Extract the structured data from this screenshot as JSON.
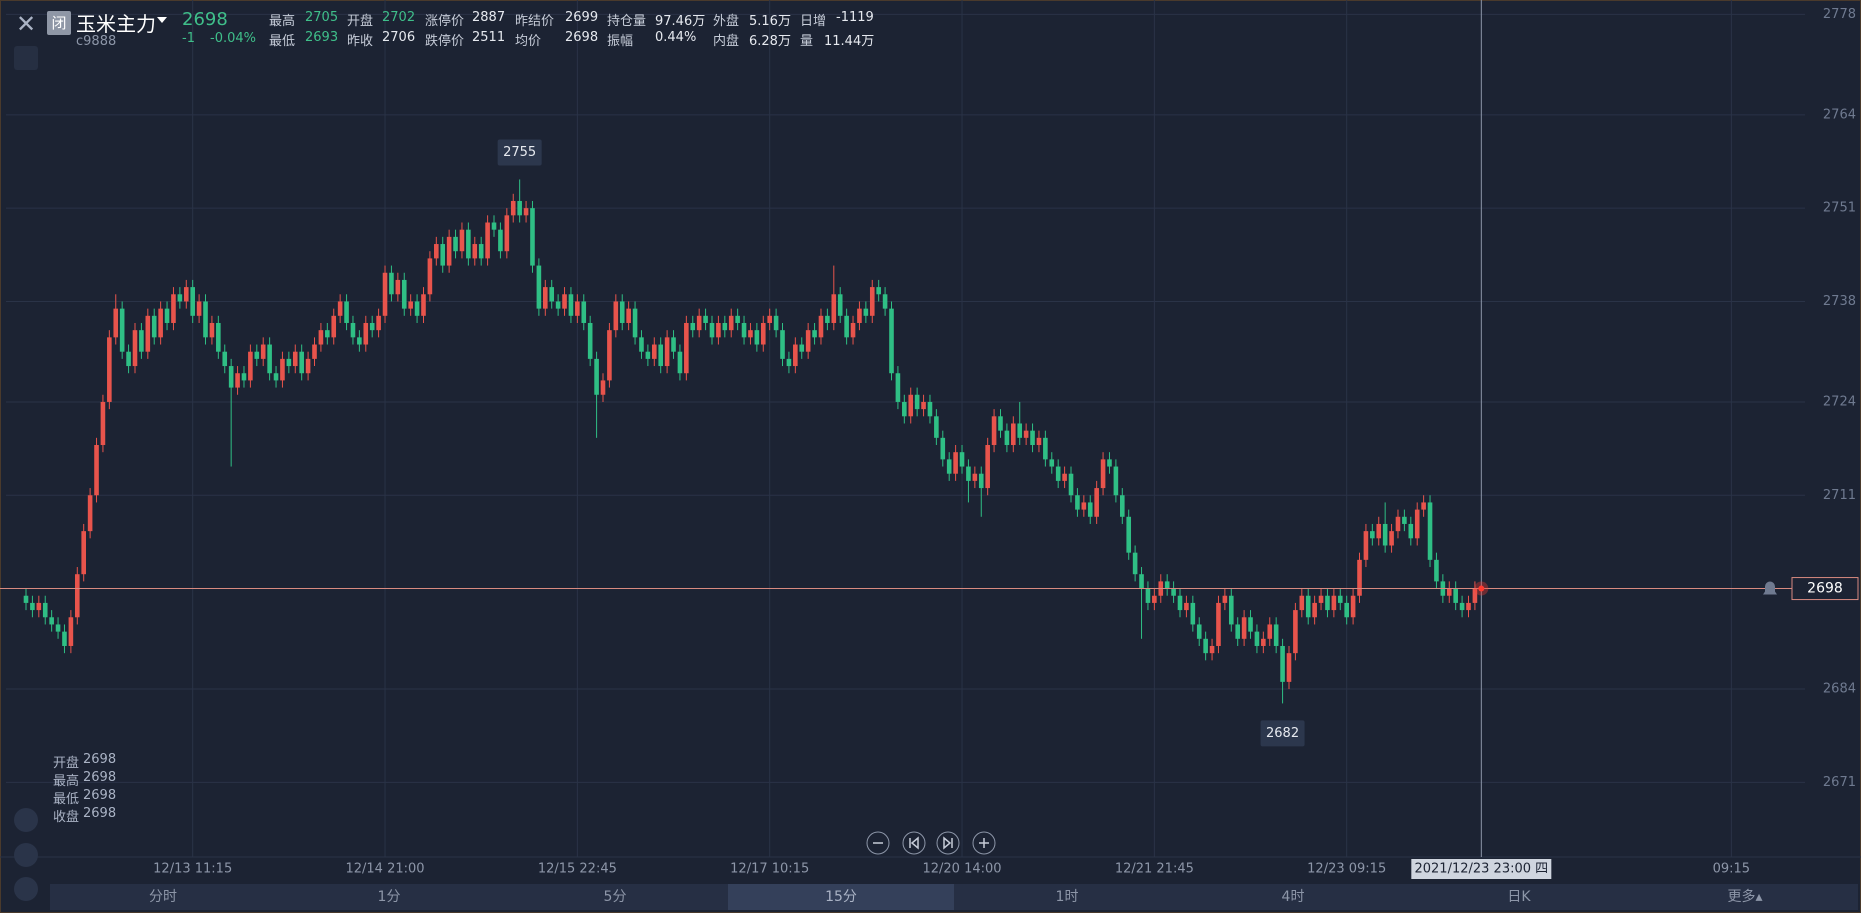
{
  "header": {
    "close_icon_label": "闭",
    "name": "玉米主力",
    "code": "c9888",
    "price": "2698",
    "change": "-1",
    "change_pct": "-0.04%"
  },
  "stats": [
    [
      {
        "label": "最高",
        "value": "2705",
        "color": "#3fbf8a"
      },
      {
        "label": "开盘",
        "value": "2702",
        "color": "#3fbf8a"
      },
      {
        "label": "涨停价",
        "value": "2887"
      },
      {
        "label": "昨结价",
        "value": "2699"
      },
      {
        "label": "持仓量",
        "value": "97.46万"
      },
      {
        "label": "外盘",
        "value": "5.16万"
      },
      {
        "label": "日增",
        "value": "-1119"
      }
    ],
    [
      {
        "label": "最低",
        "value": "2693",
        "color": "#3fbf8a"
      },
      {
        "label": "昨收",
        "value": "2706"
      },
      {
        "label": "跌停价",
        "value": "2511"
      },
      {
        "label": "均价",
        "value": "2698"
      },
      {
        "label": "振幅",
        "value": "0.44%"
      },
      {
        "label": "内盘",
        "value": "6.28万"
      },
      {
        "label": "量",
        "value": "11.44万"
      }
    ]
  ],
  "chart_data": {
    "type": "candlestick",
    "ohlc": [
      [
        2697,
        2698,
        2695,
        2696
      ],
      [
        2696,
        2697,
        2694,
        2695
      ],
      [
        2695,
        2697,
        2694,
        2696
      ],
      [
        2696,
        2697,
        2693,
        2694
      ],
      [
        2694,
        2695,
        2692,
        2693
      ],
      [
        2693,
        2694,
        2691,
        2692
      ],
      [
        2692,
        2693,
        2689,
        2690
      ],
      [
        2690,
        2695,
        2689,
        2694
      ],
      [
        2694,
        2701,
        2693,
        2700
      ],
      [
        2700,
        2707,
        2699,
        2706
      ],
      [
        2706,
        2712,
        2705,
        2711
      ],
      [
        2711,
        2719,
        2710,
        2718
      ],
      [
        2718,
        2725,
        2717,
        2724
      ],
      [
        2724,
        2734,
        2723,
        2733
      ],
      [
        2733,
        2739,
        2732,
        2737
      ],
      [
        2737,
        2738,
        2730,
        2731
      ],
      [
        2731,
        2732,
        2728,
        2729
      ],
      [
        2729,
        2735,
        2728,
        2734
      ],
      [
        2734,
        2735,
        2730,
        2731
      ],
      [
        2731,
        2737,
        2730,
        2736
      ],
      [
        2736,
        2737,
        2732,
        2733
      ],
      [
        2733,
        2738,
        2732,
        2737
      ],
      [
        2737,
        2738,
        2734,
        2735
      ],
      [
        2735,
        2740,
        2734,
        2739
      ],
      [
        2739,
        2740,
        2737,
        2738
      ],
      [
        2738,
        2741,
        2737,
        2740
      ],
      [
        2740,
        2741,
        2735,
        2736
      ],
      [
        2736,
        2739,
        2735,
        2738
      ],
      [
        2738,
        2739,
        2732,
        2733
      ],
      [
        2733,
        2736,
        2732,
        2735
      ],
      [
        2735,
        2736,
        2730,
        2731
      ],
      [
        2731,
        2732,
        2728,
        2729
      ],
      [
        2729,
        2730,
        2715,
        2726
      ],
      [
        2726,
        2729,
        2725,
        2728
      ],
      [
        2728,
        2729,
        2726,
        2727
      ],
      [
        2727,
        2732,
        2726,
        2731
      ],
      [
        2731,
        2732,
        2729,
        2730
      ],
      [
        2730,
        2733,
        2729,
        2732
      ],
      [
        2732,
        2733,
        2727,
        2728
      ],
      [
        2728,
        2729,
        2726,
        2727
      ],
      [
        2727,
        2731,
        2726,
        2730
      ],
      [
        2730,
        2731,
        2728,
        2729
      ],
      [
        2729,
        2732,
        2728,
        2731
      ],
      [
        2731,
        2732,
        2727,
        2728
      ],
      [
        2728,
        2731,
        2727,
        2730
      ],
      [
        2730,
        2733,
        2729,
        2732
      ],
      [
        2732,
        2735,
        2731,
        2734
      ],
      [
        2734,
        2735,
        2732,
        2733
      ],
      [
        2733,
        2737,
        2732,
        2736
      ],
      [
        2736,
        2739,
        2735,
        2738
      ],
      [
        2738,
        2739,
        2734,
        2735
      ],
      [
        2735,
        2736,
        2732,
        2733
      ],
      [
        2733,
        2734,
        2731,
        2732
      ],
      [
        2732,
        2736,
        2731,
        2735
      ],
      [
        2735,
        2736,
        2733,
        2734
      ],
      [
        2734,
        2737,
        2733,
        2736
      ],
      [
        2736,
        2743,
        2735,
        2742
      ],
      [
        2742,
        2743,
        2738,
        2739
      ],
      [
        2739,
        2742,
        2738,
        2741
      ],
      [
        2741,
        2742,
        2736,
        2737
      ],
      [
        2737,
        2739,
        2736,
        2738
      ],
      [
        2738,
        2739,
        2735,
        2736
      ],
      [
        2736,
        2740,
        2735,
        2739
      ],
      [
        2739,
        2745,
        2738,
        2744
      ],
      [
        2744,
        2747,
        2743,
        2746
      ],
      [
        2746,
        2747,
        2742,
        2743
      ],
      [
        2743,
        2748,
        2742,
        2747
      ],
      [
        2747,
        2748,
        2744,
        2745
      ],
      [
        2745,
        2749,
        2744,
        2748
      ],
      [
        2748,
        2749,
        2743,
        2744
      ],
      [
        2744,
        2747,
        2743,
        2746
      ],
      [
        2746,
        2747,
        2743,
        2744
      ],
      [
        2744,
        2750,
        2743,
        2749
      ],
      [
        2749,
        2750,
        2747,
        2748
      ],
      [
        2748,
        2749,
        2744,
        2745
      ],
      [
        2745,
        2751,
        2744,
        2750
      ],
      [
        2750,
        2753,
        2749,
        2752
      ],
      [
        2752,
        2755,
        2749,
        2750
      ],
      [
        2750,
        2752,
        2749,
        2751
      ],
      [
        2751,
        2752,
        2742,
        2743
      ],
      [
        2743,
        2744,
        2736,
        2737
      ],
      [
        2737,
        2741,
        2736,
        2740
      ],
      [
        2740,
        2741,
        2737,
        2738
      ],
      [
        2738,
        2739,
        2736,
        2737
      ],
      [
        2737,
        2740,
        2736,
        2739
      ],
      [
        2739,
        2740,
        2735,
        2736
      ],
      [
        2736,
        2739,
        2735,
        2738
      ],
      [
        2738,
        2739,
        2734,
        2735
      ],
      [
        2735,
        2736,
        2729,
        2730
      ],
      [
        2730,
        2731,
        2719,
        2725
      ],
      [
        2725,
        2728,
        2724,
        2727
      ],
      [
        2727,
        2735,
        2726,
        2734
      ],
      [
        2734,
        2739,
        2733,
        2738
      ],
      [
        2738,
        2739,
        2734,
        2735
      ],
      [
        2735,
        2738,
        2734,
        2737
      ],
      [
        2737,
        2738,
        2732,
        2733
      ],
      [
        2733,
        2734,
        2730,
        2731
      ],
      [
        2731,
        2732,
        2729,
        2730
      ],
      [
        2730,
        2733,
        2729,
        2732
      ],
      [
        2732,
        2733,
        2728,
        2729
      ],
      [
        2729,
        2734,
        2728,
        2733
      ],
      [
        2733,
        2734,
        2730,
        2731
      ],
      [
        2731,
        2732,
        2727,
        2728
      ],
      [
        2728,
        2736,
        2727,
        2735
      ],
      [
        2735,
        2736,
        2733,
        2734
      ],
      [
        2734,
        2737,
        2733,
        2736
      ],
      [
        2736,
        2737,
        2734,
        2735
      ],
      [
        2735,
        2736,
        2732,
        2733
      ],
      [
        2733,
        2736,
        2732,
        2735
      ],
      [
        2735,
        2736,
        2733,
        2734
      ],
      [
        2734,
        2737,
        2733,
        2736
      ],
      [
        2736,
        2737,
        2734,
        2735
      ],
      [
        2735,
        2736,
        2732,
        2733
      ],
      [
        2733,
        2735,
        2732,
        2734
      ],
      [
        2734,
        2735,
        2731,
        2732
      ],
      [
        2732,
        2736,
        2731,
        2735
      ],
      [
        2735,
        2737,
        2734,
        2736
      ],
      [
        2736,
        2737,
        2733,
        2734
      ],
      [
        2734,
        2735,
        2729,
        2730
      ],
      [
        2730,
        2731,
        2728,
        2729
      ],
      [
        2729,
        2733,
        2728,
        2732
      ],
      [
        2732,
        2733,
        2730,
        2731
      ],
      [
        2731,
        2735,
        2730,
        2734
      ],
      [
        2734,
        2735,
        2732,
        2733
      ],
      [
        2733,
        2737,
        2732,
        2736
      ],
      [
        2736,
        2737,
        2734,
        2735
      ],
      [
        2735,
        2743,
        2734,
        2739
      ],
      [
        2739,
        2740,
        2735,
        2736
      ],
      [
        2736,
        2737,
        2732,
        2733
      ],
      [
        2733,
        2736,
        2732,
        2735
      ],
      [
        2735,
        2738,
        2734,
        2737
      ],
      [
        2737,
        2738,
        2735,
        2736
      ],
      [
        2736,
        2741,
        2735,
        2740
      ],
      [
        2740,
        2741,
        2738,
        2739
      ],
      [
        2739,
        2740,
        2736,
        2737
      ],
      [
        2737,
        2738,
        2727,
        2728
      ],
      [
        2728,
        2729,
        2723,
        2724
      ],
      [
        2724,
        2725,
        2721,
        2722
      ],
      [
        2722,
        2726,
        2721,
        2725
      ],
      [
        2725,
        2726,
        2722,
        2723
      ],
      [
        2723,
        2725,
        2722,
        2724
      ],
      [
        2724,
        2725,
        2721,
        2722
      ],
      [
        2722,
        2723,
        2718,
        2719
      ],
      [
        2719,
        2720,
        2715,
        2716
      ],
      [
        2716,
        2717,
        2713,
        2714
      ],
      [
        2714,
        2718,
        2713,
        2717
      ],
      [
        2717,
        2718,
        2714,
        2715
      ],
      [
        2715,
        2716,
        2710,
        2713
      ],
      [
        2713,
        2715,
        2712,
        2714
      ],
      [
        2714,
        2715,
        2708,
        2712
      ],
      [
        2712,
        2719,
        2711,
        2718
      ],
      [
        2718,
        2723,
        2717,
        2722
      ],
      [
        2722,
        2723,
        2719,
        2720
      ],
      [
        2720,
        2721,
        2717,
        2718
      ],
      [
        2718,
        2722,
        2717,
        2721
      ],
      [
        2721,
        2724,
        2718,
        2719
      ],
      [
        2719,
        2721,
        2718,
        2720
      ],
      [
        2720,
        2721,
        2717,
        2718
      ],
      [
        2718,
        2720,
        2717,
        2719
      ],
      [
        2719,
        2720,
        2715,
        2716
      ],
      [
        2716,
        2717,
        2714,
        2715
      ],
      [
        2715,
        2716,
        2712,
        2713
      ],
      [
        2713,
        2715,
        2712,
        2714
      ],
      [
        2714,
        2715,
        2710,
        2711
      ],
      [
        2711,
        2712,
        2708,
        2709
      ],
      [
        2709,
        2711,
        2708,
        2710
      ],
      [
        2710,
        2711,
        2707,
        2708
      ],
      [
        2708,
        2713,
        2707,
        2712
      ],
      [
        2712,
        2717,
        2711,
        2716
      ],
      [
        2716,
        2717,
        2714,
        2715
      ],
      [
        2715,
        2716,
        2710,
        2711
      ],
      [
        2711,
        2712,
        2707,
        2708
      ],
      [
        2708,
        2709,
        2702,
        2703
      ],
      [
        2703,
        2704,
        2699,
        2700
      ],
      [
        2700,
        2701,
        2691,
        2698
      ],
      [
        2698,
        2699,
        2695,
        2696
      ],
      [
        2696,
        2698,
        2695,
        2697
      ],
      [
        2697,
        2700,
        2696,
        2699
      ],
      [
        2699,
        2700,
        2697,
        2698
      ],
      [
        2698,
        2699,
        2696,
        2697
      ],
      [
        2697,
        2698,
        2694,
        2695
      ],
      [
        2695,
        2697,
        2694,
        2696
      ],
      [
        2696,
        2697,
        2692,
        2693
      ],
      [
        2693,
        2694,
        2690,
        2691
      ],
      [
        2691,
        2692,
        2688,
        2689
      ],
      [
        2689,
        2691,
        2688,
        2690
      ],
      [
        2690,
        2697,
        2689,
        2696
      ],
      [
        2696,
        2698,
        2695,
        2697
      ],
      [
        2697,
        2698,
        2692,
        2693
      ],
      [
        2693,
        2694,
        2690,
        2691
      ],
      [
        2691,
        2695,
        2690,
        2694
      ],
      [
        2694,
        2695,
        2691,
        2692
      ],
      [
        2692,
        2693,
        2689,
        2690
      ],
      [
        2690,
        2692,
        2689,
        2691
      ],
      [
        2691,
        2694,
        2690,
        2693
      ],
      [
        2693,
        2694,
        2689,
        2690
      ],
      [
        2690,
        2691,
        2682,
        2685
      ],
      [
        2685,
        2690,
        2684,
        2689
      ],
      [
        2689,
        2696,
        2688,
        2695
      ],
      [
        2695,
        2698,
        2694,
        2697
      ],
      [
        2697,
        2698,
        2693,
        2694
      ],
      [
        2694,
        2697,
        2693,
        2696
      ],
      [
        2696,
        2698,
        2695,
        2697
      ],
      [
        2697,
        2698,
        2694,
        2695
      ],
      [
        2695,
        2698,
        2694,
        2697
      ],
      [
        2697,
        2698,
        2695,
        2696
      ],
      [
        2696,
        2697,
        2693,
        2694
      ],
      [
        2694,
        2698,
        2693,
        2697
      ],
      [
        2697,
        2703,
        2696,
        2702
      ],
      [
        2702,
        2707,
        2701,
        2706
      ],
      [
        2706,
        2707,
        2704,
        2705
      ],
      [
        2705,
        2708,
        2704,
        2707
      ],
      [
        2707,
        2710,
        2703,
        2704
      ],
      [
        2704,
        2707,
        2703,
        2706
      ],
      [
        2706,
        2709,
        2705,
        2708
      ],
      [
        2708,
        2709,
        2706,
        2707
      ],
      [
        2707,
        2708,
        2704,
        2705
      ],
      [
        2705,
        2710,
        2704,
        2709
      ],
      [
        2709,
        2711,
        2708,
        2710
      ],
      [
        2710,
        2711,
        2701,
        2702
      ],
      [
        2702,
        2703,
        2698,
        2699
      ],
      [
        2699,
        2700,
        2696,
        2697
      ],
      [
        2697,
        2699,
        2696,
        2698
      ],
      [
        2698,
        2699,
        2695,
        2696
      ],
      [
        2696,
        2697,
        2694,
        2695
      ],
      [
        2695,
        2697,
        2694,
        2696
      ],
      [
        2696,
        2699,
        2695,
        2698
      ],
      [
        2698,
        2698,
        2698,
        2698
      ]
    ],
    "xlim": [
      0,
      270
    ],
    "xticks": [
      {
        "value": 26,
        "label": "12/13 11:15"
      },
      {
        "value": 56,
        "label": "12/14 21:00"
      },
      {
        "value": 86,
        "label": "12/15 22:45"
      },
      {
        "value": 116,
        "label": "12/17 10:15"
      },
      {
        "value": 146,
        "label": "12/20 14:00"
      },
      {
        "value": 176,
        "label": "12/21 21:45"
      },
      {
        "value": 206,
        "label": "12/23 09:15"
      },
      {
        "value": 266,
        "label": "09:15"
      }
    ],
    "ylim": [
      2660.6,
      2780
    ],
    "yticks": [
      2778,
      2764,
      2751,
      2738,
      2724,
      2711,
      2684,
      2671
    ],
    "grid": true,
    "up_color": "#e8544c",
    "down_color": "#2fbf85",
    "last_price": 2698,
    "crosshair_label": "2021/12/23 23:00 四",
    "readout_labels": [
      "开盘",
      "最高",
      "最低",
      "收盘"
    ]
  },
  "tabs": {
    "items": [
      "分时",
      "1分",
      "5分",
      "15分",
      "1时",
      "4时",
      "日K",
      "更多"
    ],
    "active": 3
  }
}
